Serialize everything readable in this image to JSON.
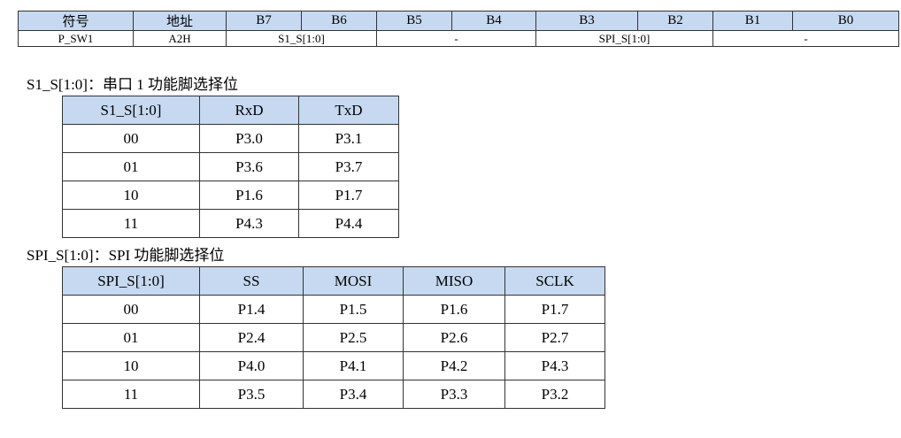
{
  "register_table": {
    "header": [
      "符号",
      "地址",
      "B7",
      "B6",
      "B5",
      "B4",
      "B3",
      "B2",
      "B1",
      "B0"
    ],
    "row": [
      "P_SW1",
      "A2H",
      "S1_S[1:0]",
      "-",
      "SPI_S[1:0]",
      "-"
    ]
  },
  "sections": [
    {
      "label": "S1_S[1:0]：串口 1 功能脚选择位",
      "header": [
        "S1_S[1:0]",
        "RxD",
        "TxD"
      ],
      "rows": [
        [
          "00",
          "P3.0",
          "P3.1"
        ],
        [
          "01",
          "P3.6",
          "P3.7"
        ],
        [
          "10",
          "P1.6",
          "P1.7"
        ],
        [
          "11",
          "P4.3",
          "P4.4"
        ]
      ]
    },
    {
      "label": "SPI_S[1:0]：SPI 功能脚选择位",
      "header": [
        "SPI_S[1:0]",
        "SS",
        "MOSI",
        "MISO",
        "SCLK"
      ],
      "rows": [
        [
          "00",
          "P1.4",
          "P1.5",
          "P1.6",
          "P1.7"
        ],
        [
          "01",
          "P2.4",
          "P2.5",
          "P2.6",
          "P2.7"
        ],
        [
          "10",
          "P4.0",
          "P4.1",
          "P4.2",
          "P4.3"
        ],
        [
          "11",
          "P3.5",
          "P3.4",
          "P3.3",
          "P3.2"
        ]
      ]
    }
  ]
}
